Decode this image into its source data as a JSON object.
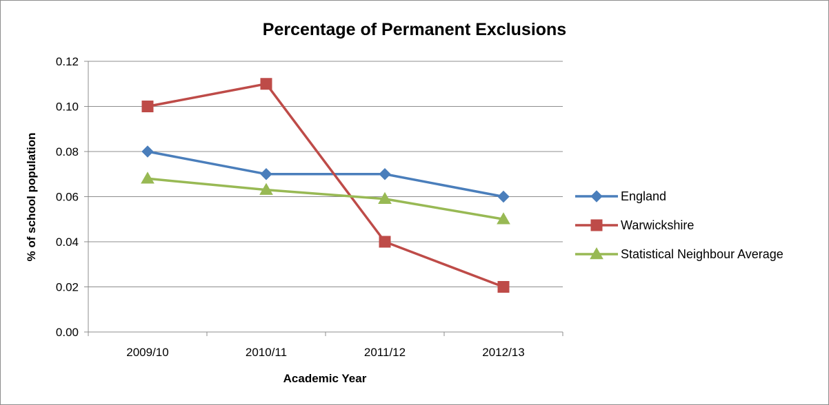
{
  "chart_data": {
    "type": "line",
    "title": "Percentage of Permanent Exclusions",
    "xlabel": "Academic Year",
    "ylabel": "% of school population",
    "categories": [
      "2009/10",
      "2010/11",
      "2011/12",
      "2012/13"
    ],
    "ylim": [
      0,
      0.12
    ],
    "yticks": [
      "0.00",
      "0.02",
      "0.04",
      "0.06",
      "0.08",
      "0.10",
      "0.12"
    ],
    "grid": true,
    "legend_position": "right",
    "series": [
      {
        "name": "England",
        "values": [
          0.08,
          0.07,
          0.07,
          0.06
        ],
        "color": "#4a7ebb",
        "marker": "diamond"
      },
      {
        "name": "Warwickshire",
        "values": [
          0.1,
          0.11,
          0.04,
          0.02
        ],
        "color": "#be4b48",
        "marker": "square"
      },
      {
        "name": "Statistical Neighbour Average",
        "values": [
          0.068,
          0.063,
          0.059,
          0.05
        ],
        "color": "#98b954",
        "marker": "triangle"
      }
    ]
  }
}
